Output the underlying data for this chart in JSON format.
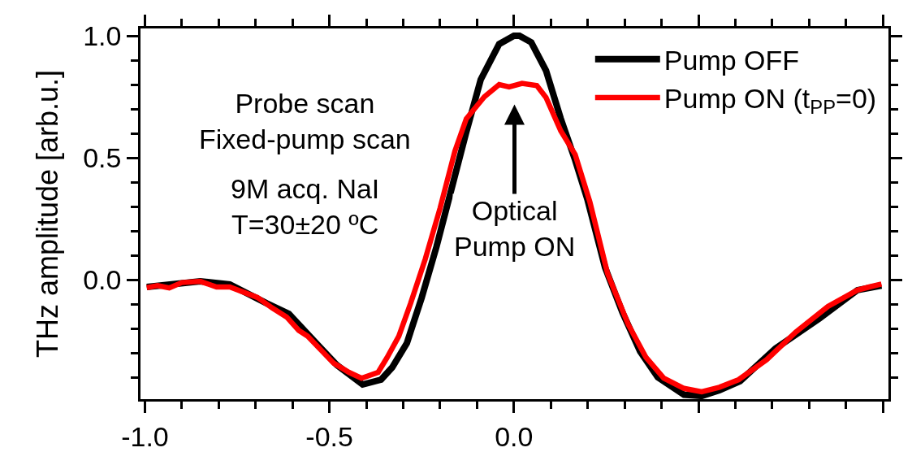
{
  "chart_data": {
    "type": "line",
    "ylabel": "THz amplitude [arb.u.]",
    "annotations": [
      "Probe scan\nFixed-pump scan",
      "9M acq. NaI\nT=30±20 ºC",
      "Optical\nPump ON"
    ],
    "series": [
      {
        "name": "Pump OFF",
        "color": "#000000",
        "x": [
          -0.995,
          -0.85,
          -0.77,
          -0.67,
          -0.61,
          -0.53,
          -0.48,
          -0.41,
          -0.36,
          -0.33,
          -0.29,
          -0.25,
          -0.21,
          -0.17,
          -0.13,
          -0.09,
          -0.04,
          0.0,
          0.015,
          0.047,
          0.087,
          0.127,
          0.166,
          0.199,
          0.247,
          0.294,
          0.342,
          0.39,
          0.461,
          0.509,
          0.557,
          0.613,
          0.709,
          0.828,
          0.931,
          0.996
        ],
        "values": [
          -0.03,
          -0.007,
          -0.02,
          -0.097,
          -0.14,
          -0.27,
          -0.35,
          -0.43,
          -0.41,
          -0.36,
          -0.26,
          -0.074,
          0.134,
          0.367,
          0.6,
          0.82,
          0.966,
          1.0,
          1.0,
          0.973,
          0.857,
          0.66,
          0.49,
          0.33,
          0.05,
          -0.134,
          -0.294,
          -0.4,
          -0.472,
          -0.477,
          -0.453,
          -0.416,
          -0.282,
          -0.159,
          -0.043,
          -0.024
        ]
      },
      {
        "name": "Pump ON (t$_{PP}$=0)",
        "color": "#ff0000",
        "x": [
          -0.995,
          -0.966,
          -0.934,
          -0.9,
          -0.85,
          -0.806,
          -0.77,
          -0.695,
          -0.655,
          -0.616,
          -0.583,
          -0.559,
          -0.488,
          -0.447,
          -0.413,
          -0.368,
          -0.344,
          -0.312,
          -0.28,
          -0.24,
          -0.2,
          -0.16,
          -0.129,
          -0.08,
          -0.04,
          -0.013,
          0.022,
          0.062,
          0.087,
          0.127,
          0.166,
          0.206,
          0.254,
          0.31,
          0.358,
          0.406,
          0.461,
          0.509,
          0.557,
          0.609,
          0.685,
          0.764,
          0.851,
          0.931,
          0.963,
          0.996
        ],
        "values": [
          -0.033,
          -0.024,
          -0.034,
          -0.012,
          -0.007,
          -0.03,
          -0.03,
          -0.073,
          -0.116,
          -0.153,
          -0.208,
          -0.232,
          -0.343,
          -0.38,
          -0.404,
          -0.38,
          -0.32,
          -0.232,
          -0.097,
          0.086,
          0.294,
          0.527,
          0.66,
          0.75,
          0.8,
          0.79,
          0.805,
          0.796,
          0.747,
          0.61,
          0.513,
          0.318,
          0.024,
          -0.184,
          -0.319,
          -0.404,
          -0.446,
          -0.46,
          -0.441,
          -0.41,
          -0.328,
          -0.215,
          -0.11,
          -0.043,
          -0.03,
          -0.018
        ]
      }
    ],
    "xlim": [
      -1.012,
      1.015
    ],
    "xticks": [
      {
        "value": -1.0,
        "label": "-1.0"
      },
      -0.5,
      {
        "value": 0.0,
        "label": "0.0"
      },
      {
        "value": 0.5,
        "label": null
      },
      {
        "value": 1.0,
        "label": null
      }
    ],
    "ylim": [
      -0.49,
      1.03
    ],
    "yticks": [
      {
        "value": 0.0,
        "label": "0.0"
      },
      0.5,
      {
        "value": 1.0,
        "label": "1.0"
      }
    ],
    "legend": "top right",
    "marker": "none",
    "line_style": "solid"
  }
}
